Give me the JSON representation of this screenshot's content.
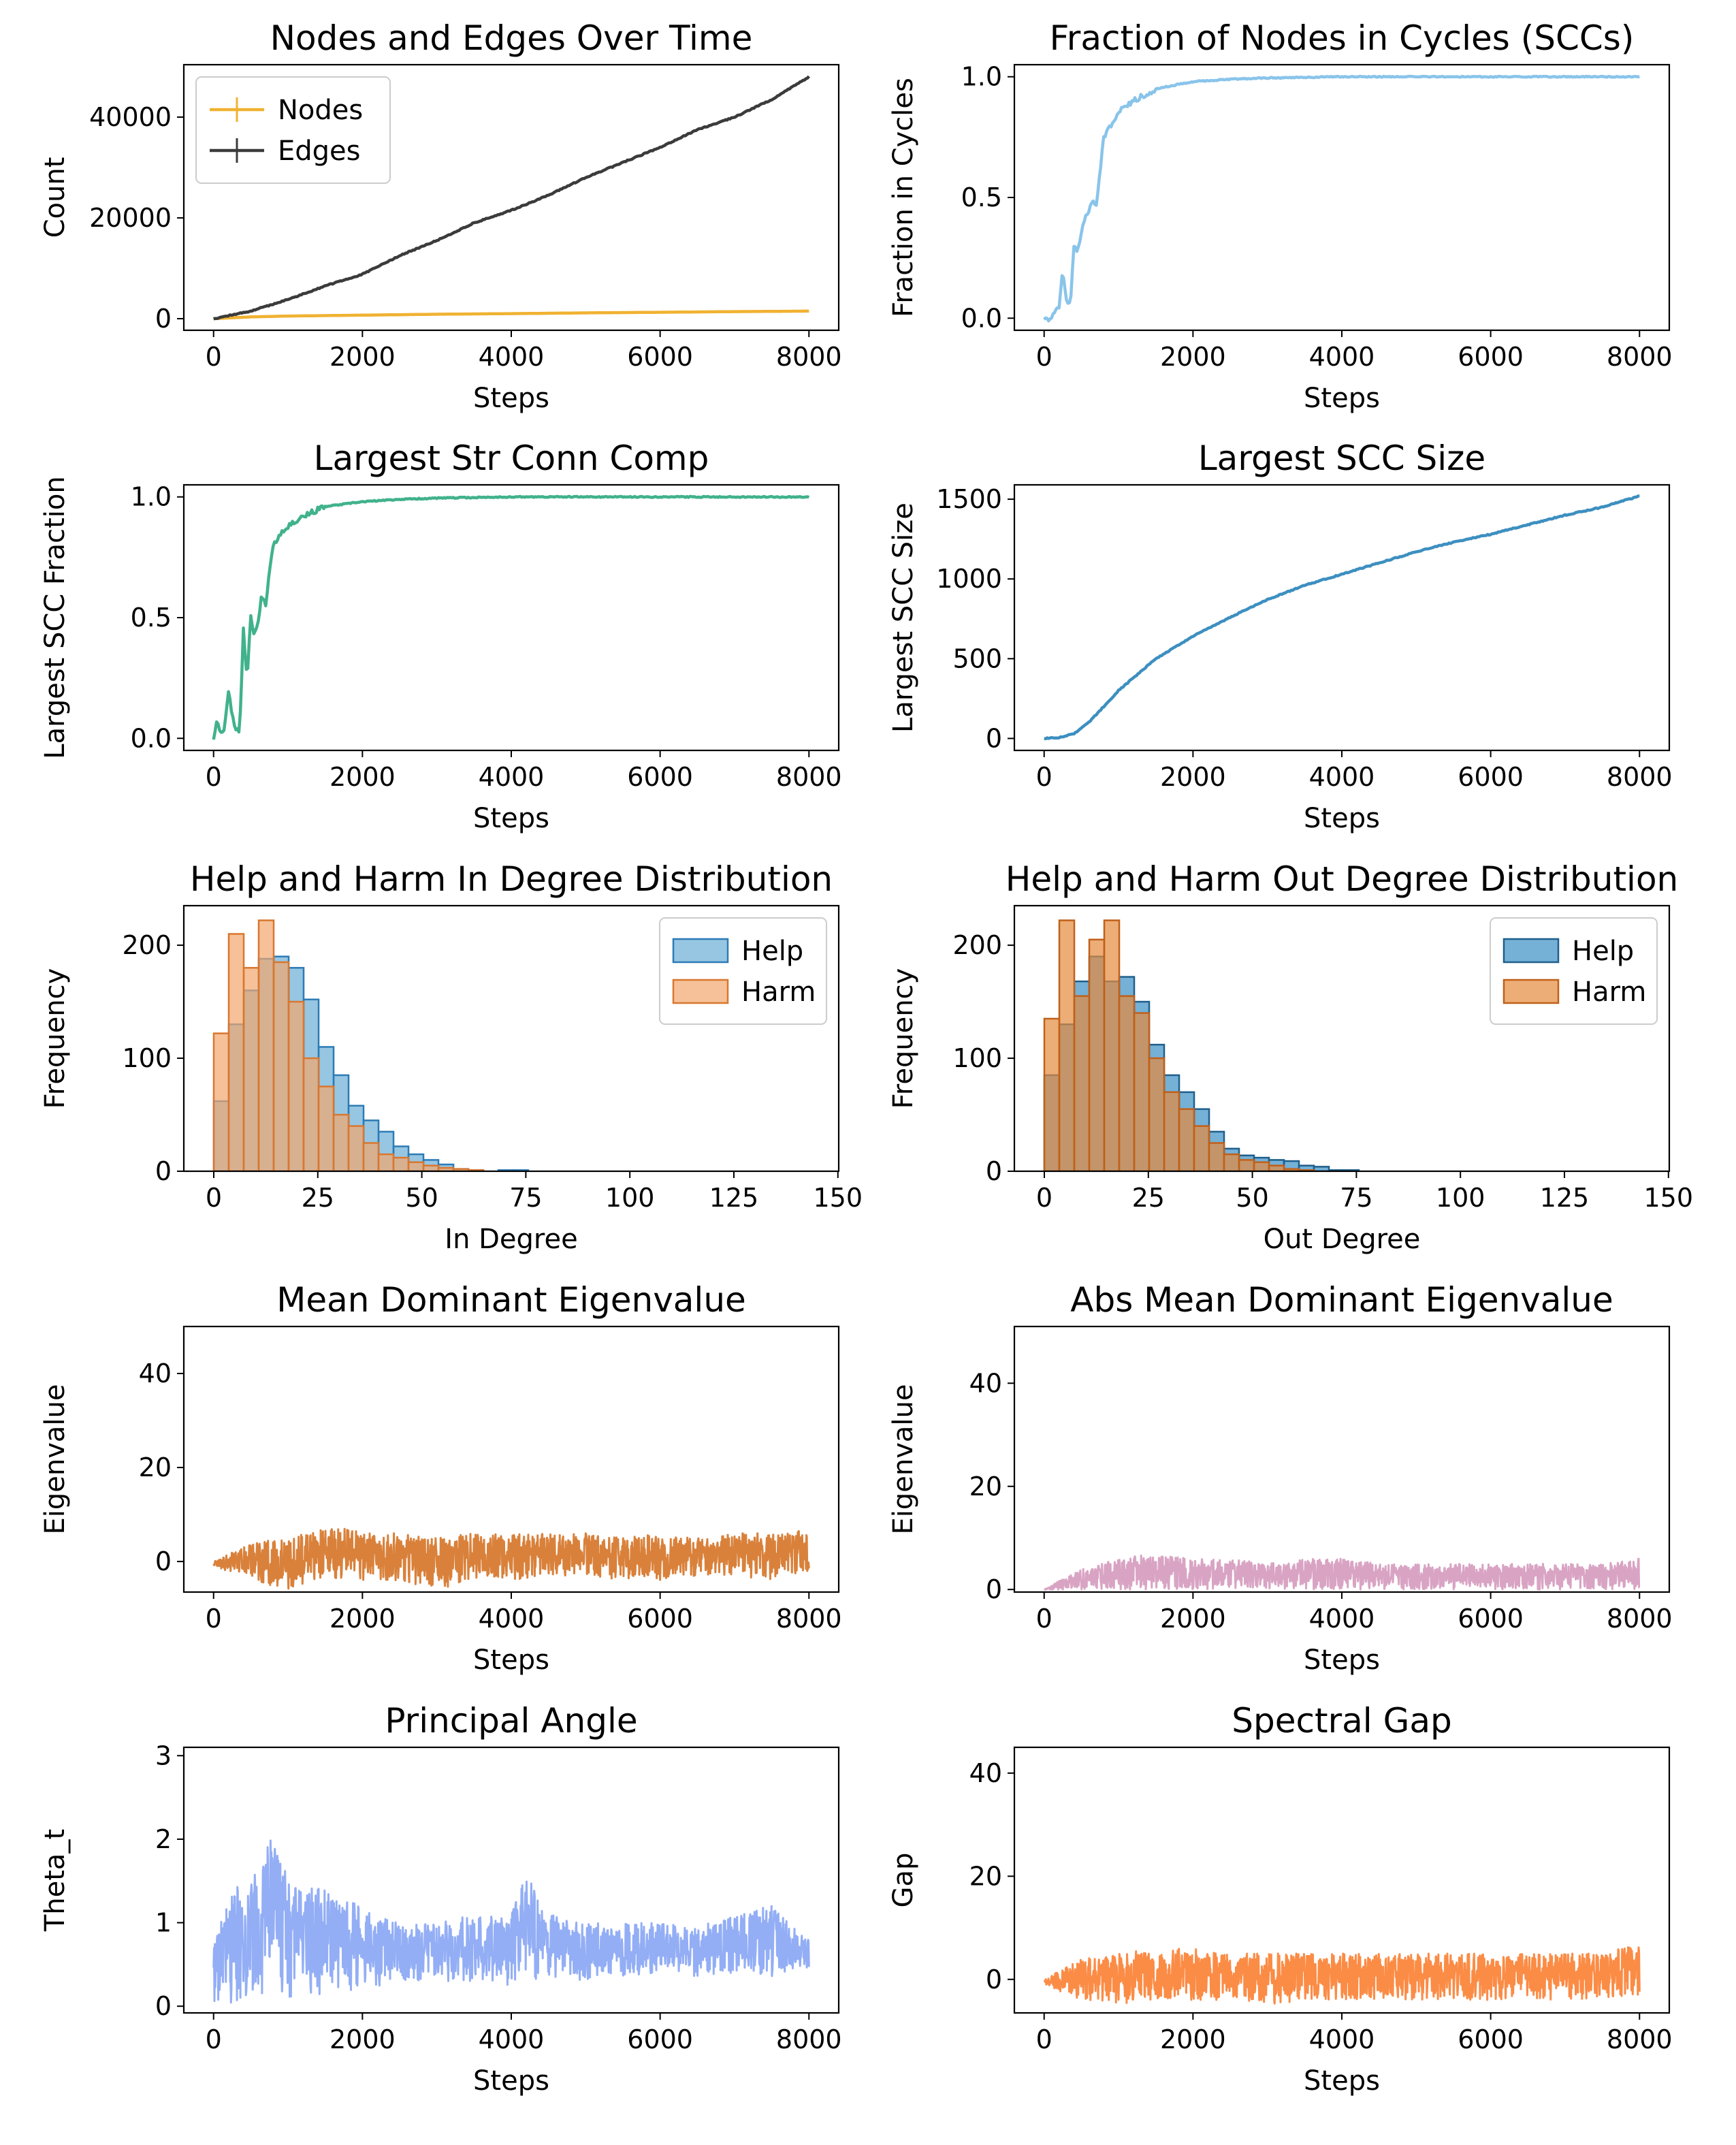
{
  "figure": {
    "panel_count": 10
  },
  "chart_data": [
    {
      "type": "line",
      "title": "Nodes and Edges Over Time",
      "xlabel": "Steps",
      "ylabel": "Count",
      "xlim": [
        -400,
        8400
      ],
      "ylim": [
        -2300,
        50400
      ],
      "xticks": [
        0,
        2000,
        4000,
        6000,
        8000
      ],
      "yticks": [
        0,
        20000,
        40000
      ],
      "xtick_labels": [
        "0",
        "2000",
        "4000",
        "6000",
        "8000"
      ],
      "ytick_labels": [
        "0",
        "20000",
        "40000"
      ],
      "legend": {
        "position": "top-left",
        "entries": [
          "Nodes",
          "Edges"
        ]
      },
      "series": [
        {
          "name": "Nodes",
          "color": "#f0b232",
          "x": [
            0,
            500,
            1000,
            2000,
            3000,
            4000,
            5000,
            6000,
            7000,
            8000
          ],
          "y": [
            0,
            350,
            520,
            700,
            880,
            1000,
            1150,
            1270,
            1400,
            1500
          ]
        },
        {
          "name": "Edges",
          "color": "#3b3b3b",
          "x": [
            0,
            500,
            1000,
            1500,
            2000,
            2500,
            3000,
            3500,
            4000,
            4500,
            5000,
            5500,
            6000,
            6500,
            7000,
            7500,
            8000
          ],
          "y": [
            0,
            1500,
            3800,
            6500,
            8800,
            12500,
            15500,
            19000,
            21500,
            24500,
            28000,
            31000,
            34000,
            37500,
            40000,
            43500,
            48000
          ]
        }
      ]
    },
    {
      "type": "line",
      "title": "Fraction of Nodes in Cycles (SCCs)",
      "xlabel": "Steps",
      "ylabel": "Fraction in Cycles",
      "xlim": [
        -400,
        8400
      ],
      "ylim": [
        -0.05,
        1.05
      ],
      "xticks": [
        0,
        2000,
        4000,
        6000,
        8000
      ],
      "yticks": [
        0.0,
        0.5,
        1.0
      ],
      "xtick_labels": [
        "0",
        "2000",
        "4000",
        "6000",
        "8000"
      ],
      "ytick_labels": [
        "0.0",
        "0.5",
        "1.0"
      ],
      "series": [
        {
          "name": "Fraction in Cycles",
          "color": "#89c4ea",
          "x": [
            0,
            100,
            200,
            250,
            300,
            350,
            400,
            450,
            500,
            550,
            600,
            650,
            700,
            750,
            800,
            900,
            1000,
            1200,
            1500,
            2000,
            2500,
            3000,
            4000,
            5000,
            6000,
            7000,
            8000
          ],
          "y": [
            0,
            0,
            0.05,
            0.2,
            0.08,
            0.05,
            0.3,
            0.27,
            0.36,
            0.42,
            0.44,
            0.5,
            0.46,
            0.6,
            0.75,
            0.8,
            0.86,
            0.9,
            0.95,
            0.98,
            0.99,
            0.995,
            1.0,
            1.0,
            1.0,
            1.0,
            1.0
          ]
        }
      ]
    },
    {
      "type": "line",
      "title": "Largest Str Conn Comp",
      "xlabel": "Steps",
      "ylabel": "Largest SCC Fraction",
      "xlim": [
        -400,
        8400
      ],
      "ylim": [
        -0.05,
        1.05
      ],
      "xticks": [
        0,
        2000,
        4000,
        6000,
        8000
      ],
      "yticks": [
        0.0,
        0.5,
        1.0
      ],
      "xtick_labels": [
        "0",
        "2000",
        "4000",
        "6000",
        "8000"
      ],
      "ytick_labels": [
        "0.0",
        "0.5",
        "1.0"
      ],
      "series": [
        {
          "name": "Largest SCC Fraction",
          "color": "#41b28b",
          "x": [
            0,
            50,
            100,
            150,
            200,
            250,
            300,
            350,
            400,
            450,
            500,
            550,
            600,
            650,
            700,
            750,
            800,
            900,
            1000,
            1200,
            1500,
            2000,
            2500,
            3000,
            4000,
            5000,
            6000,
            7000,
            8000
          ],
          "y": [
            0,
            0.08,
            0.02,
            0.05,
            0.2,
            0.1,
            0.03,
            0.03,
            0.45,
            0.25,
            0.5,
            0.43,
            0.48,
            0.6,
            0.55,
            0.7,
            0.8,
            0.85,
            0.88,
            0.92,
            0.96,
            0.98,
            0.99,
            0.995,
            1.0,
            1.0,
            1.0,
            1.0,
            1.0
          ]
        }
      ]
    },
    {
      "type": "line",
      "title": "Largest SCC Size",
      "xlabel": "Steps",
      "ylabel": "Largest SCC Size",
      "xlim": [
        -400,
        8400
      ],
      "ylim": [
        -75,
        1590
      ],
      "xticks": [
        0,
        2000,
        4000,
        6000,
        8000
      ],
      "yticks": [
        0,
        500,
        1000,
        1500
      ],
      "xtick_labels": [
        "0",
        "2000",
        "4000",
        "6000",
        "8000"
      ],
      "ytick_labels": [
        "0",
        "500",
        "1000",
        "1500"
      ],
      "series": [
        {
          "name": "Largest SCC Size",
          "color": "#3d8fc0",
          "x": [
            0,
            200,
            400,
            600,
            800,
            1000,
            1500,
            2000,
            2500,
            3000,
            3500,
            4000,
            4500,
            5000,
            5500,
            6000,
            6500,
            7000,
            7500,
            8000
          ],
          "y": [
            0,
            5,
            30,
            100,
            200,
            300,
            500,
            640,
            760,
            870,
            960,
            1030,
            1100,
            1170,
            1230,
            1280,
            1340,
            1400,
            1450,
            1520
          ]
        }
      ]
    },
    {
      "type": "bar",
      "title": "Help and Harm In Degree Distribution",
      "xlabel": "In Degree",
      "ylabel": "Frequency",
      "xlim": [
        -7.2,
        150.2
      ],
      "ylim": [
        0,
        235
      ],
      "xticks": [
        0,
        25,
        50,
        75,
        100,
        125,
        150
      ],
      "yticks": [
        0,
        100,
        200
      ],
      "xtick_labels": [
        "0",
        "25",
        "50",
        "75",
        "100",
        "125",
        "150"
      ],
      "ytick_labels": [
        "0",
        "100",
        "200"
      ],
      "bin_start": 0,
      "bin_width": 3.6,
      "legend": {
        "position": "top-right",
        "entries": [
          "Help",
          "Harm"
        ]
      },
      "series": [
        {
          "name": "Help",
          "color": "#6baed6",
          "stroke": "#2c7bb6",
          "values": [
            62,
            130,
            160,
            188,
            190,
            180,
            152,
            110,
            85,
            58,
            45,
            35,
            22,
            15,
            10,
            6,
            2,
            1,
            0,
            1,
            1,
            0,
            0,
            0,
            0,
            0,
            0,
            0,
            0,
            0,
            0,
            0,
            0,
            0,
            0,
            0,
            0,
            0,
            0
          ]
        },
        {
          "name": "Harm",
          "color": "#f2a76e",
          "stroke": "#d9772f",
          "values": [
            122,
            210,
            180,
            222,
            185,
            150,
            100,
            75,
            50,
            40,
            25,
            15,
            12,
            8,
            5,
            3,
            2,
            1,
            0,
            0,
            0,
            0,
            0,
            0,
            0,
            0,
            0,
            0,
            0,
            0,
            0,
            0,
            0,
            0,
            0,
            0,
            0,
            0,
            0
          ]
        }
      ]
    },
    {
      "type": "bar",
      "title": "Help and Harm Out Degree Distribution",
      "xlabel": "Out Degree",
      "ylabel": "Frequency",
      "xlim": [
        -7.2,
        150.2
      ],
      "ylim": [
        0,
        235
      ],
      "xticks": [
        0,
        25,
        50,
        75,
        100,
        125,
        150
      ],
      "yticks": [
        0,
        100,
        200
      ],
      "xtick_labels": [
        "0",
        "25",
        "50",
        "75",
        "100",
        "125",
        "150"
      ],
      "ytick_labels": [
        "0",
        "100",
        "200"
      ],
      "bin_start": 0,
      "bin_width": 3.6,
      "legend": {
        "position": "top-right",
        "entries": [
          "Help",
          "Harm"
        ]
      },
      "series": [
        {
          "name": "Help",
          "color": "#3a8fc4",
          "stroke": "#1f5f8b",
          "values": [
            85,
            130,
            168,
            190,
            168,
            172,
            150,
            112,
            85,
            70,
            55,
            35,
            20,
            14,
            12,
            10,
            9,
            5,
            4,
            1,
            1,
            0,
            0,
            0,
            0,
            0,
            0,
            0,
            0,
            0,
            0,
            0,
            0,
            0,
            0,
            0,
            0,
            0,
            0
          ]
        },
        {
          "name": "Harm",
          "color": "#e68a3c",
          "stroke": "#c0601a",
          "values": [
            135,
            222,
            155,
            205,
            222,
            155,
            140,
            100,
            70,
            55,
            40,
            25,
            15,
            10,
            8,
            5,
            2,
            1,
            0,
            0,
            0,
            0,
            0,
            0,
            0,
            0,
            0,
            0,
            0,
            0,
            0,
            0,
            0,
            0,
            0,
            0,
            0,
            0,
            0
          ]
        }
      ]
    },
    {
      "type": "line",
      "title": "Mean Dominant Eigenvalue",
      "xlabel": "Steps",
      "ylabel": "Eigenvalue",
      "xlim": [
        -400,
        8400
      ],
      "ylim": [
        -6.5,
        50
      ],
      "xticks": [
        0,
        2000,
        4000,
        6000,
        8000
      ],
      "yticks": [
        0,
        20,
        40
      ],
      "xtick_labels": [
        "0",
        "2000",
        "4000",
        "6000",
        "8000"
      ],
      "ytick_labels": [
        "0",
        "20",
        "40"
      ],
      "series": [
        {
          "name": "Eigenvalue",
          "color": "#d9813b",
          "x": [
            0,
            500,
            1000,
            1500,
            2000,
            2500,
            3000,
            3500,
            4000,
            4500,
            5000,
            5500,
            6000,
            6500,
            7000,
            7500,
            8000
          ],
          "y_min": [
            -1,
            -4,
            -6,
            -4,
            -4,
            -4,
            -6,
            -4,
            -4,
            -3,
            -3,
            -4,
            -4,
            -3,
            -3,
            -4,
            -2
          ],
          "y_max": [
            0,
            4,
            5,
            7,
            7,
            6,
            5,
            6,
            6,
            6,
            6,
            5,
            6,
            5,
            6,
            6,
            7
          ]
        }
      ]
    },
    {
      "type": "line",
      "title": "Abs Mean Dominant Eigenvalue",
      "xlabel": "Steps",
      "ylabel": "Eigenvalue",
      "xlim": [
        -400,
        8400
      ],
      "ylim": [
        -0.5,
        51
      ],
      "xticks": [
        0,
        2000,
        4000,
        6000,
        8000
      ],
      "yticks": [
        0,
        20,
        40
      ],
      "xtick_labels": [
        "0",
        "2000",
        "4000",
        "6000",
        "8000"
      ],
      "ytick_labels": [
        "0",
        "20",
        "40"
      ],
      "series": [
        {
          "name": "Abs Eigenvalue",
          "color": "#d9a4c4",
          "x": [
            0,
            500,
            1000,
            1500,
            2000,
            2500,
            3000,
            3500,
            4000,
            4500,
            5000,
            5500,
            6000,
            6500,
            7000,
            7500,
            8000
          ],
          "y_min": [
            0,
            0,
            0,
            0,
            0,
            0,
            0,
            0,
            0,
            0,
            0,
            0,
            0,
            0,
            0,
            0,
            0
          ],
          "y_max": [
            0,
            4,
            6,
            7,
            6,
            6,
            5,
            6,
            6,
            5,
            5,
            5,
            5,
            5,
            5,
            5,
            6
          ]
        }
      ]
    },
    {
      "type": "line",
      "title": "Principal Angle",
      "xlabel": "Steps",
      "ylabel": "Theta_t",
      "xlim": [
        -400,
        8400
      ],
      "ylim": [
        -0.08,
        3.1
      ],
      "xticks": [
        0,
        2000,
        4000,
        6000,
        8000
      ],
      "yticks": [
        0,
        1,
        2,
        3
      ],
      "xtick_labels": [
        "0",
        "2000",
        "4000",
        "6000",
        "8000"
      ],
      "ytick_labels": [
        "0",
        "1",
        "2",
        "3"
      ],
      "series": [
        {
          "name": "Theta_t",
          "color": "#93aef5",
          "x": [
            0,
            300,
            600,
            800,
            1000,
            1500,
            2000,
            2500,
            3000,
            3500,
            4000,
            4200,
            4500,
            5000,
            5500,
            6000,
            6500,
            7000,
            7500,
            8000
          ],
          "y_min": [
            0,
            0.05,
            0.1,
            0.15,
            0.1,
            0.15,
            0.2,
            0.3,
            0.3,
            0.3,
            0.25,
            0.3,
            0.35,
            0.3,
            0.35,
            0.4,
            0.35,
            0.4,
            0.35,
            0.45
          ],
          "y_max": [
            0.8,
            1.5,
            1.6,
            2.1,
            1.5,
            1.4,
            1.2,
            1.0,
            1.0,
            1.1,
            1.1,
            1.6,
            1.1,
            1.0,
            1.0,
            1.0,
            0.95,
            1.1,
            1.2,
            0.8
          ]
        }
      ]
    },
    {
      "type": "line",
      "title": "Spectral Gap",
      "xlabel": "Steps",
      "ylabel": "Gap",
      "xlim": [
        -400,
        8400
      ],
      "ylim": [
        -6.5,
        45
      ],
      "xticks": [
        0,
        2000,
        4000,
        6000,
        8000
      ],
      "yticks": [
        0,
        20,
        40
      ],
      "xtick_labels": [
        "0",
        "2000",
        "4000",
        "6000",
        "8000"
      ],
      "ytick_labels": [
        "0",
        "20",
        "40"
      ],
      "series": [
        {
          "name": "Gap",
          "color": "#fb8c46",
          "x": [
            0,
            500,
            1000,
            1500,
            2000,
            2500,
            3000,
            3500,
            4000,
            4500,
            5000,
            5500,
            6000,
            6500,
            7000,
            7500,
            8000
          ],
          "y_min": [
            -1,
            -4,
            -5,
            -4,
            -4,
            -4,
            -5,
            -4,
            -4,
            -4,
            -4,
            -4,
            -4,
            -4,
            -4,
            -4,
            -3
          ],
          "y_max": [
            0,
            4,
            5,
            6,
            6,
            5,
            5,
            5,
            5,
            5,
            5,
            5,
            5,
            5,
            5,
            5,
            7
          ]
        }
      ]
    }
  ]
}
